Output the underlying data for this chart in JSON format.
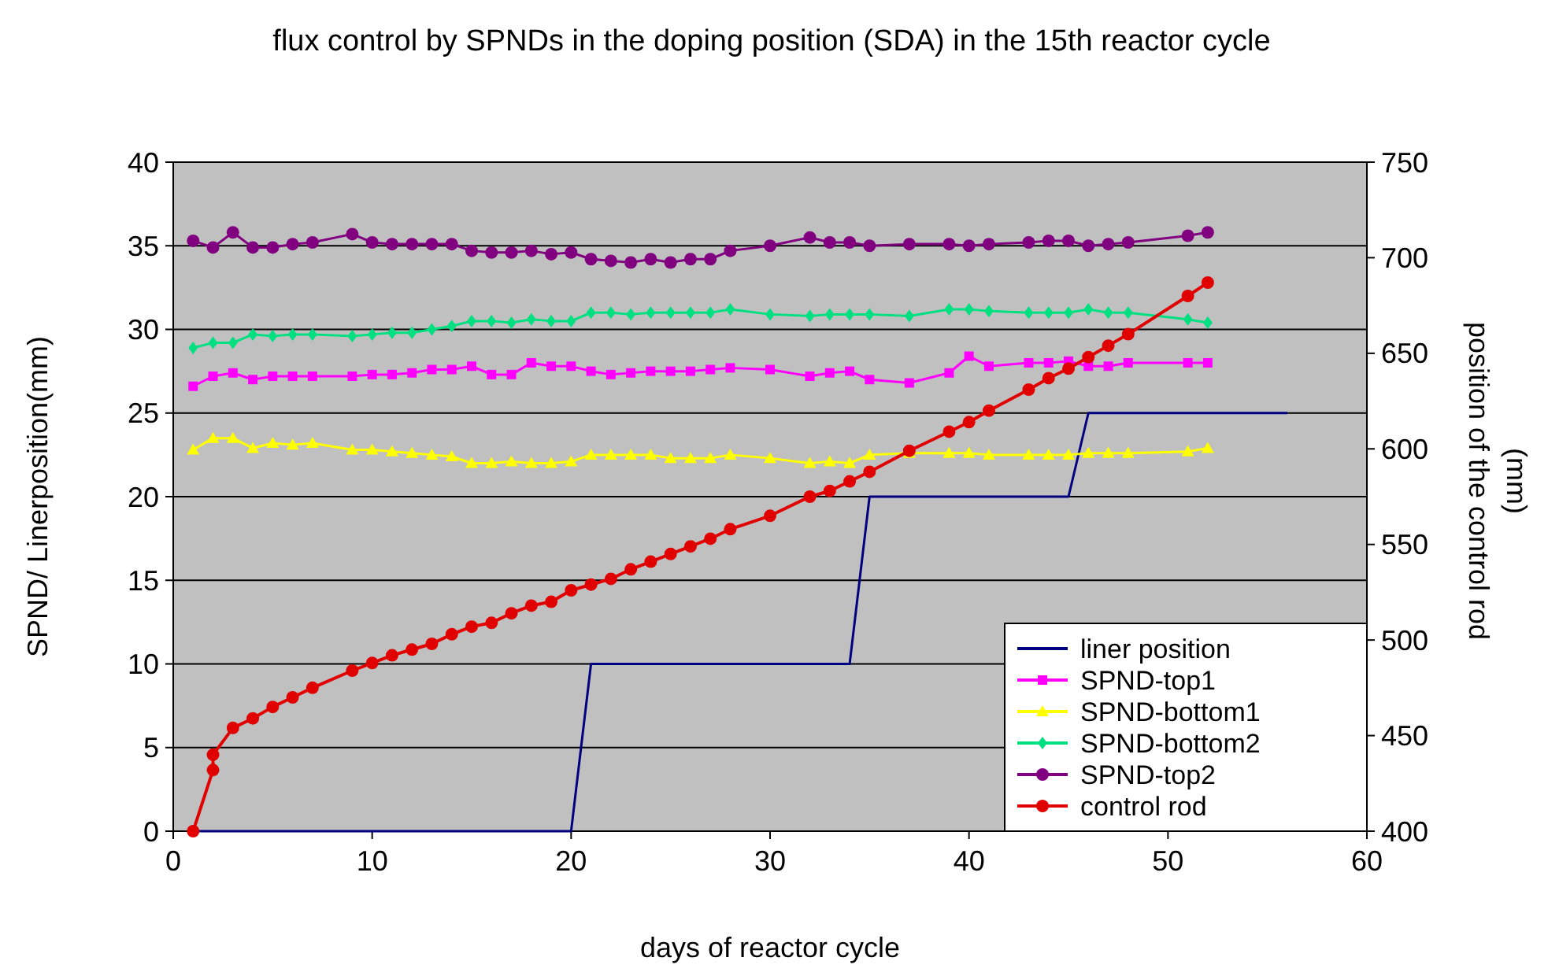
{
  "chart_data": {
    "type": "line",
    "title": "flux control by SPNDs in the doping position (SDA) in the 15th reactor cycle",
    "xlabel": "days of reactor cycle",
    "ylabel": "SPND/ Linerposition(mm)",
    "y2label": "position of the control rod (mm)",
    "xlim": [
      0,
      60
    ],
    "xticks": [
      0,
      10,
      20,
      30,
      40,
      50,
      60
    ],
    "ylim": [
      0,
      40
    ],
    "yticks": [
      0,
      5,
      10,
      15,
      20,
      25,
      30,
      35,
      40
    ],
    "y2lim": [
      400,
      750
    ],
    "y2ticks": [
      400,
      450,
      500,
      550,
      600,
      650,
      700,
      750
    ],
    "grid": "y",
    "legend": "bottom right",
    "series": [
      {
        "name": "liner position",
        "color": "#000080",
        "marker": "none",
        "x": [
          1,
          20,
          21,
          34,
          35,
          45,
          46,
          56
        ],
        "values": [
          0,
          0,
          10,
          10,
          20,
          20,
          25,
          25
        ]
      },
      {
        "name": "SPND-top1",
        "color": "#ff00ff",
        "marker": "square",
        "x": [
          1,
          2,
          3,
          4,
          5,
          6,
          7,
          9,
          10,
          11,
          12,
          13,
          14,
          15,
          16,
          17,
          18,
          19,
          20,
          21,
          22,
          23,
          24,
          25,
          26,
          27,
          28,
          30,
          32,
          33,
          34,
          35,
          37,
          39,
          40,
          41,
          43,
          44,
          45,
          46,
          47,
          48,
          51,
          52
        ],
        "values": [
          26.6,
          27.2,
          27.4,
          27.0,
          27.2,
          27.2,
          27.2,
          27.2,
          27.3,
          27.3,
          27.4,
          27.6,
          27.6,
          27.8,
          27.3,
          27.3,
          28.0,
          27.8,
          27.8,
          27.5,
          27.3,
          27.4,
          27.5,
          27.5,
          27.5,
          27.6,
          27.7,
          27.6,
          27.2,
          27.4,
          27.5,
          27.0,
          26.8,
          27.4,
          28.4,
          27.8,
          28.0,
          28.0,
          28.1,
          27.8,
          27.8,
          28.0,
          28.0,
          28.0
        ]
      },
      {
        "name": "SPND-bottom1",
        "color": "#ffff00",
        "marker": "triangle",
        "x": [
          1,
          2,
          3,
          4,
          5,
          6,
          7,
          9,
          10,
          11,
          12,
          13,
          14,
          15,
          16,
          17,
          18,
          19,
          20,
          21,
          22,
          23,
          24,
          25,
          26,
          27,
          28,
          30,
          32,
          33,
          34,
          35,
          37,
          39,
          40,
          41,
          43,
          44,
          45,
          46,
          47,
          48,
          51,
          52
        ],
        "values": [
          22.8,
          23.5,
          23.5,
          22.9,
          23.2,
          23.1,
          23.2,
          22.8,
          22.8,
          22.7,
          22.6,
          22.5,
          22.4,
          22.0,
          22.0,
          22.1,
          22.0,
          22.0,
          22.1,
          22.5,
          22.5,
          22.5,
          22.5,
          22.3,
          22.3,
          22.3,
          22.5,
          22.3,
          22.0,
          22.1,
          22.0,
          22.5,
          22.6,
          22.6,
          22.6,
          22.5,
          22.5,
          22.5,
          22.5,
          22.6,
          22.6,
          22.6,
          22.7,
          22.9
        ]
      },
      {
        "name": "SPND-bottom2",
        "color": "#00e080",
        "marker": "diamond",
        "x": [
          1,
          2,
          3,
          4,
          5,
          6,
          7,
          9,
          10,
          11,
          12,
          13,
          14,
          15,
          16,
          17,
          18,
          19,
          20,
          21,
          22,
          23,
          24,
          25,
          26,
          27,
          28,
          30,
          32,
          33,
          34,
          35,
          37,
          39,
          40,
          41,
          43,
          44,
          45,
          46,
          47,
          48,
          51,
          52
        ],
        "values": [
          28.9,
          29.2,
          29.2,
          29.7,
          29.6,
          29.7,
          29.7,
          29.6,
          29.7,
          29.8,
          29.8,
          30.0,
          30.2,
          30.5,
          30.5,
          30.4,
          30.6,
          30.5,
          30.5,
          31.0,
          31.0,
          30.9,
          31.0,
          31.0,
          31.0,
          31.0,
          31.2,
          30.9,
          30.8,
          30.9,
          30.9,
          30.9,
          30.8,
          31.2,
          31.2,
          31.1,
          31.0,
          31.0,
          31.0,
          31.2,
          31.0,
          31.0,
          30.6,
          30.4
        ]
      },
      {
        "name": "SPND-top2",
        "color": "#800080",
        "marker": "circle",
        "x": [
          1,
          2,
          3,
          4,
          5,
          6,
          7,
          9,
          10,
          11,
          12,
          13,
          14,
          15,
          16,
          17,
          18,
          19,
          20,
          21,
          22,
          23,
          24,
          25,
          26,
          27,
          28,
          30,
          32,
          33,
          34,
          35,
          37,
          39,
          40,
          41,
          43,
          44,
          45,
          46,
          47,
          48,
          51,
          52
        ],
        "values": [
          35.3,
          34.9,
          35.8,
          34.9,
          34.9,
          35.1,
          35.2,
          35.7,
          35.2,
          35.1,
          35.1,
          35.1,
          35.1,
          34.7,
          34.6,
          34.6,
          34.7,
          34.5,
          34.6,
          34.2,
          34.1,
          34.0,
          34.2,
          34.0,
          34.2,
          34.2,
          34.7,
          35.0,
          35.5,
          35.2,
          35.2,
          35.0,
          35.1,
          35.1,
          35.0,
          35.1,
          35.2,
          35.3,
          35.3,
          35.0,
          35.1,
          35.2,
          35.6,
          35.8
        ]
      },
      {
        "name": "control rod",
        "color": "#e00000",
        "marker": "circle",
        "axis": "y2",
        "x": [
          1,
          2,
          2,
          3,
          4,
          5,
          6,
          7,
          9,
          10,
          11,
          12,
          13,
          14,
          15,
          16,
          17,
          18,
          19,
          20,
          21,
          22,
          23,
          24,
          25,
          26,
          27,
          28,
          30,
          32,
          33,
          34,
          35,
          37,
          39,
          40,
          41,
          43,
          44,
          45,
          46,
          47,
          48,
          51,
          52
        ],
        "values": [
          400,
          432,
          440,
          454,
          459,
          465,
          470,
          475,
          484,
          488,
          492,
          495,
          498,
          503,
          507,
          509,
          514,
          518,
          520,
          526,
          529,
          532,
          537,
          541,
          545,
          549,
          553,
          558,
          565,
          575,
          578,
          583,
          588,
          599,
          609,
          614,
          620,
          631,
          637,
          642,
          648,
          654,
          660,
          680,
          687
        ]
      }
    ]
  }
}
